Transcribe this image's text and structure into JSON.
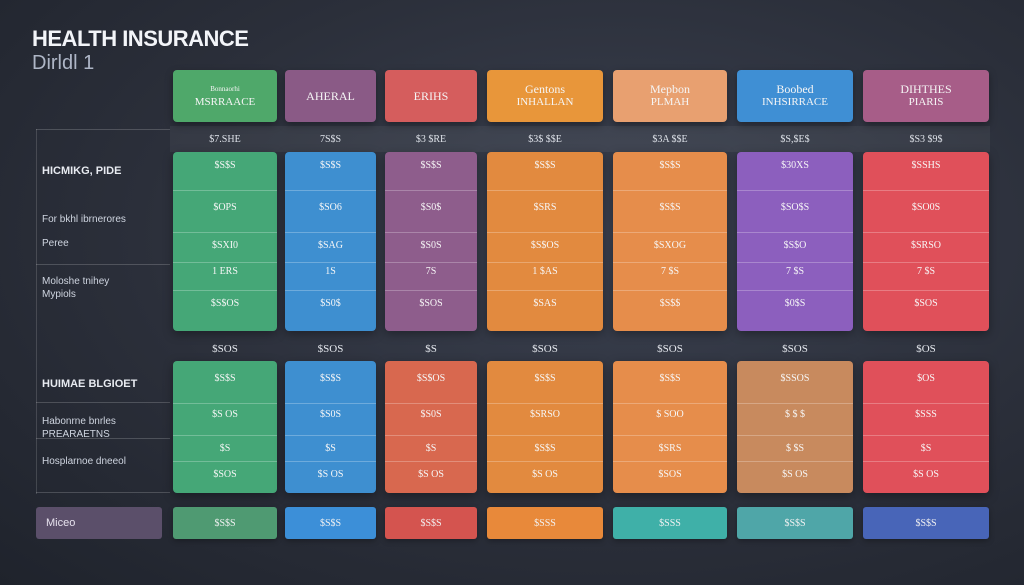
{
  "header": {
    "title": "HEALTH INSURANCE",
    "subtitle": "Dirldl 1"
  },
  "columns": [
    {
      "line1": "Bonnaorhi",
      "line2": "MSRRAACE",
      "color": "#4fa86a"
    },
    {
      "line1": "AHERAL",
      "line2": "",
      "color": "#8a5a86"
    },
    {
      "line1": "ERIHS",
      "line2": "",
      "color": "#d55d5d"
    },
    {
      "line1": "Gentons",
      "line2": "INHALLAN",
      "color": "#e8963a"
    },
    {
      "line1": "Mepbon",
      "line2": "PLMAH",
      "color": "#e8a070"
    },
    {
      "line1": "Boobed",
      "line2": "INHSIRRACE",
      "color": "#3f8fd4"
    },
    {
      "line1": "DIHTHES",
      "line2": "PIARIS",
      "color": "#a75d88"
    }
  ],
  "row_labels": {
    "sec1_head": "HICMIKG, PIDE",
    "sec1_a": "For bkhl ibrnerores",
    "sec1_b": "Peree",
    "sec1_c": "Moloshe tnihey",
    "sec1_d": "Mypiols",
    "sec2_head": "HUIMAE BLGIOET",
    "sec2_a": "Habonrne bnrles",
    "sec2_b": "PREARAETNS",
    "sec2_c": "Hosplarnoe dneeol",
    "footer": "Miceo"
  },
  "price_row": [
    "$7.SHE",
    "7S$S",
    "$3 $RE",
    "$3$ $$E",
    "$3A $$E",
    "$S,$E$",
    "$S3 $9$"
  ],
  "block1": {
    "colors": [
      "#45a777",
      "#3e8fd0",
      "#8e5d8c",
      "#e28a3f",
      "#e68d4b",
      "#8c5fbe",
      "#e0505a"
    ],
    "rows": [
      [
        "$S$S",
        "$S$S",
        "$S$S",
        "$S$S",
        "$S$S",
        "$30XS",
        "$SSHS"
      ],
      [
        "$OPS",
        "$SO6",
        "$S0$",
        "$SRS",
        "$S$S",
        "$SO$S",
        "$SO0S"
      ],
      [
        "$SXI0",
        "$SAG",
        "$S0S",
        "$S$OS",
        "$SXOG",
        "$S$O",
        "$SRSO"
      ],
      [
        "1 ERS",
        "1S",
        "7S",
        "1 $AS",
        "7 $S",
        "7 $S",
        "7 $S"
      ],
      [
        "$S$OS",
        "$S0$",
        "$SOS",
        "$SAS",
        "$S$$",
        "$0$S",
        "$SOS"
      ]
    ]
  },
  "mid_row": [
    "$SOS",
    "$SOS",
    "$S",
    "$SOS",
    "$SOS",
    "$SOS",
    "$OS"
  ],
  "block2": {
    "colors": [
      "#45a777",
      "#3e8fd0",
      "#d8684f",
      "#e28a3f",
      "#e68d4b",
      "#c88a5e",
      "#e0505a"
    ],
    "rows": [
      [
        "$S$S",
        "$S$S",
        "$S$OS",
        "$S$S",
        "$S$S",
        "$SSOS",
        "$OS"
      ],
      [
        "$S OS",
        "$S0S",
        "$S0S",
        "$SRSO",
        "$ SOO",
        "$ $ $",
        "$SSS"
      ],
      [
        "$S",
        "$S",
        "$S",
        "$S$S",
        "$SRS",
        "$ $S",
        "$S"
      ],
      [
        "$SOS",
        "$S OS",
        "$S OS",
        "$S OS",
        "$SOS",
        "$S OS",
        "$S OS"
      ]
    ]
  },
  "footer_row": {
    "colors": [
      "#4f9a72",
      "#3c8fd8",
      "#d4544f",
      "#e8893a",
      "#3fb0a8",
      "#4fa6a8",
      "#4865b8"
    ],
    "values": [
      "$S$S",
      "$S$S",
      "$S$S",
      "$SSS",
      "$SSS",
      "$S$S",
      "$S$S"
    ]
  }
}
